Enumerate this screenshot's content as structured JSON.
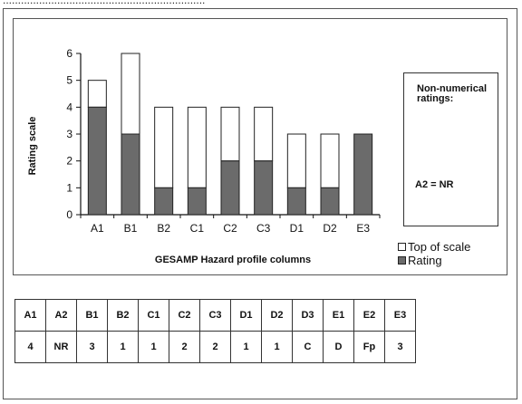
{
  "caption": "...................................................................",
  "chart_data": {
    "type": "bar",
    "stacked": true,
    "categories": [
      "A1",
      "B1",
      "B2",
      "C1",
      "C2",
      "C3",
      "D1",
      "D2",
      "E3"
    ],
    "series": [
      {
        "name": "Rating",
        "values": [
          4,
          3,
          1,
          1,
          2,
          2,
          1,
          1,
          3
        ],
        "color": "#6b6b6b"
      },
      {
        "name": "Top of scale",
        "values": [
          1,
          3,
          3,
          3,
          2,
          2,
          2,
          2,
          0
        ],
        "color": "#ffffff"
      }
    ],
    "top_of_scale_totals": [
      5,
      6,
      4,
      4,
      4,
      4,
      3,
      3,
      3
    ],
    "xlabel": "GESAMP Hazard profile columns",
    "ylabel": "Rating scale",
    "ylim": [
      0,
      6
    ],
    "yticks": [
      "0",
      "1",
      "2",
      "3",
      "4",
      "5",
      "6"
    ],
    "grid": false,
    "legend": "bottom-right",
    "legend_entries": [
      "Top of scale",
      "Rating"
    ]
  },
  "note": {
    "title": "Non-numerical ratings:",
    "value": "A2 = NR"
  },
  "table": {
    "headers": [
      "A1",
      "A2",
      "B1",
      "B2",
      "C1",
      "C2",
      "C3",
      "D1",
      "D2",
      "D3",
      "E1",
      "E2",
      "E3"
    ],
    "values": [
      "4",
      "NR",
      "3",
      "1",
      "1",
      "2",
      "2",
      "1",
      "1",
      "C",
      "D",
      "Fp",
      "3"
    ]
  }
}
